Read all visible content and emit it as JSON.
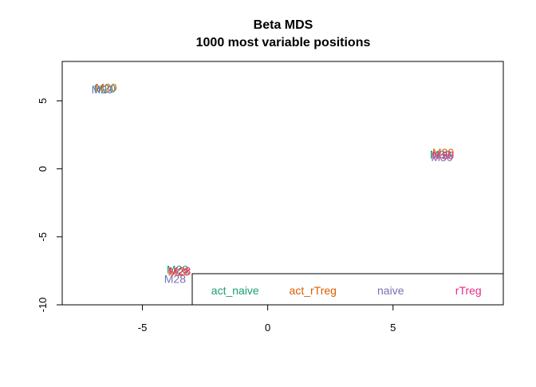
{
  "chart_data": {
    "type": "scatter",
    "title": "Beta MDS",
    "subtitle": "1000 most variable positions",
    "xlim": [
      -8.2,
      9.4
    ],
    "ylim": [
      -10.0,
      7.9
    ],
    "x_ticks": [
      -5,
      0,
      5
    ],
    "y_ticks": [
      -10,
      -5,
      0,
      5
    ],
    "x_tick_labels": [
      "-5",
      "0",
      "5"
    ],
    "y_tick_labels": [
      "-10",
      "-5",
      "0",
      "5"
    ],
    "grid": false,
    "legend": {
      "placement": "bottom-right",
      "entries": [
        {
          "name": "act_naive",
          "color": "#1B9E77"
        },
        {
          "name": "act_rTreg",
          "color": "#D95F02"
        },
        {
          "name": "naive",
          "color": "#7570B3"
        },
        {
          "name": "rTreg",
          "color": "#E7298A"
        }
      ]
    },
    "points": [
      {
        "label": "M20",
        "x": -6.5,
        "y": 5.9,
        "group": "act_naive",
        "color": "#1B9E77"
      },
      {
        "label": "M20",
        "x": -6.45,
        "y": 6.0,
        "group": "act_rTreg",
        "color": "#D95F02"
      },
      {
        "label": "M29",
        "x": -6.6,
        "y": 5.85,
        "group": "naive",
        "color": "#7570B3"
      },
      {
        "label": "M30",
        "x": 6.9,
        "y": 1.05,
        "group": "act_naive",
        "color": "#1B9E77"
      },
      {
        "label": "M30",
        "x": 7.0,
        "y": 1.2,
        "group": "act_rTreg",
        "color": "#D95F02"
      },
      {
        "label": "M30",
        "x": 6.95,
        "y": 0.85,
        "group": "naive",
        "color": "#7570B3"
      },
      {
        "label": "M30",
        "x": 7.0,
        "y": 1.0,
        "group": "rTreg",
        "color": "#E7298A"
      },
      {
        "label": "M28",
        "x": -3.6,
        "y": -7.4,
        "group": "act_naive",
        "color": "#1B9E77"
      },
      {
        "label": "M28",
        "x": -3.55,
        "y": -7.55,
        "group": "act_rTreg",
        "color": "#D95F02"
      },
      {
        "label": "M28",
        "x": -3.5,
        "y": -7.5,
        "group": "rTreg",
        "color": "#E7298A"
      },
      {
        "label": "M28",
        "x": -3.7,
        "y": -8.1,
        "group": "naive",
        "color": "#7570B3"
      }
    ]
  }
}
